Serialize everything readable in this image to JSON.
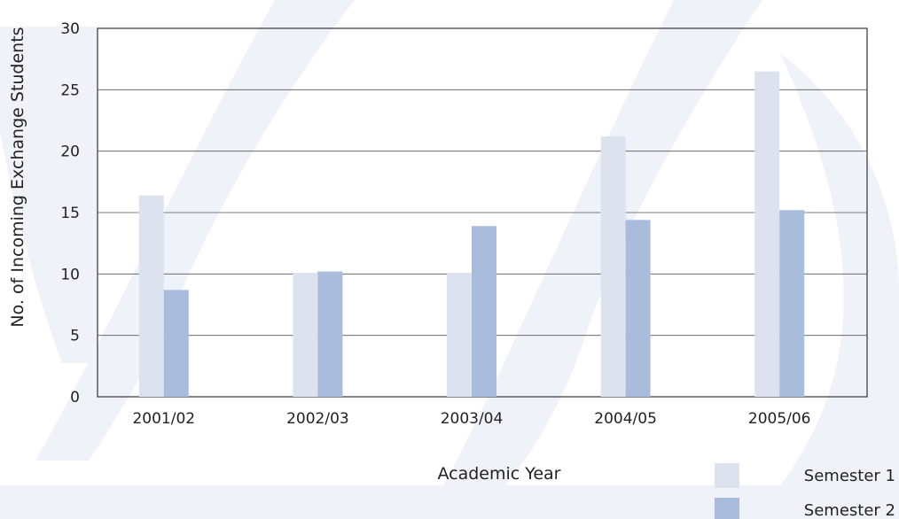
{
  "chart_data": {
    "type": "bar",
    "title": "",
    "xlabel": "Academic Year",
    "ylabel": "No. of Incoming Exchange Students",
    "categories": [
      "2001/02",
      "2002/03",
      "2003/04",
      "2004/05",
      "2005/06"
    ],
    "series": [
      {
        "name": "Semester 1",
        "values": [
          16.4,
          10.1,
          10.1,
          21.2,
          26.5
        ],
        "color": "#dce3ef"
      },
      {
        "name": "Semester 2",
        "values": [
          8.7,
          10.2,
          13.9,
          14.4,
          15.2
        ],
        "color": "#a9bcdc"
      }
    ],
    "ylim": [
      0,
      30
    ],
    "yticks": [
      0,
      5,
      10,
      15,
      20,
      25,
      30
    ],
    "grid": true,
    "legend_position": "bottom-right"
  },
  "background": {
    "page_color": "#ffffff",
    "watermark_color": "#f0f2f9"
  }
}
